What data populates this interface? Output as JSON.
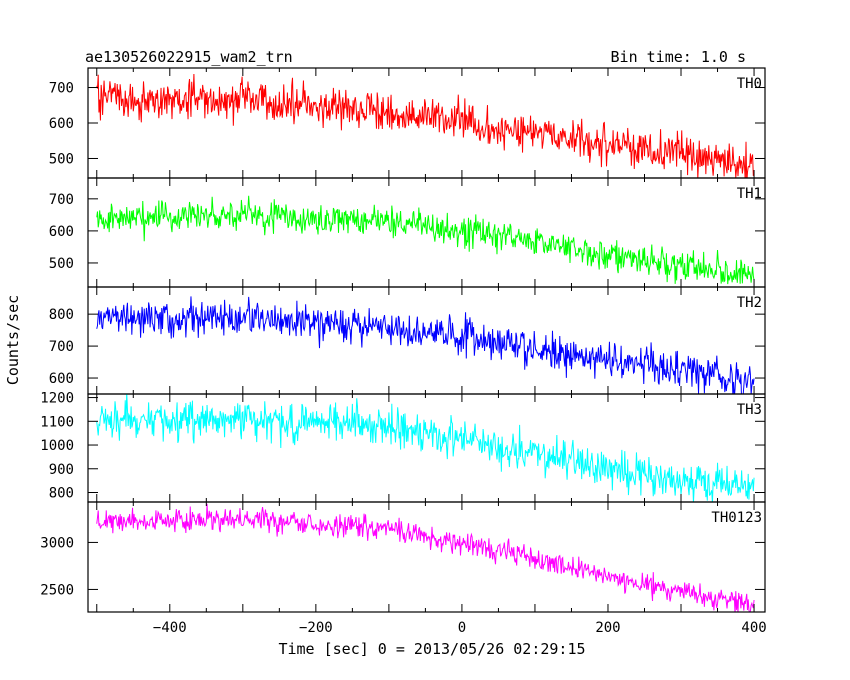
{
  "chart_data": {
    "type": "line",
    "title": "ae130526022915_wam2_trn",
    "bin_time_label": "Bin time: 1.0 s",
    "xlabel": "Time [sec] 0 = 2013/05/26 02:29:15",
    "ylabel": "Counts/sec",
    "xlim": [
      -512,
      415
    ],
    "x_ticks": [
      -400,
      -200,
      0,
      200,
      400
    ],
    "x_tick_labels": [
      "−400",
      "−200",
      "0",
      "200",
      "400"
    ],
    "grid": false,
    "panels": [
      {
        "name": "TH0",
        "color": "#ff0000",
        "ylim": [
          445,
          755
        ],
        "y_ticks": [
          500,
          600,
          700
        ],
        "y_tick_labels": [
          "500",
          "600",
          "700"
        ],
        "x_range": [
          -500,
          400
        ],
        "noise": 28,
        "trend": [
          [
            -500,
            670
          ],
          [
            -300,
            660
          ],
          [
            -100,
            635
          ],
          [
            0,
            605
          ],
          [
            100,
            570
          ],
          [
            200,
            540
          ],
          [
            300,
            510
          ],
          [
            400,
            480
          ]
        ]
      },
      {
        "name": "TH1",
        "color": "#00ff00",
        "ylim": [
          425,
          765
        ],
        "y_ticks": [
          500,
          600,
          700
        ],
        "y_tick_labels": [
          "500",
          "600",
          "700"
        ],
        "x_range": [
          -500,
          400
        ],
        "noise": 24,
        "trend": [
          [
            -500,
            640
          ],
          [
            -300,
            650
          ],
          [
            -100,
            630
          ],
          [
            0,
            600
          ],
          [
            100,
            565
          ],
          [
            200,
            530
          ],
          [
            300,
            490
          ],
          [
            400,
            460
          ]
        ]
      },
      {
        "name": "TH2",
        "color": "#0000ff",
        "ylim": [
          550,
          885
        ],
        "y_ticks": [
          600,
          700,
          800
        ],
        "y_tick_labels": [
          "600",
          "700",
          "800"
        ],
        "x_range": [
          -500,
          400
        ],
        "noise": 28,
        "trend": [
          [
            -500,
            790
          ],
          [
            -300,
            785
          ],
          [
            -100,
            760
          ],
          [
            0,
            730
          ],
          [
            100,
            690
          ],
          [
            200,
            655
          ],
          [
            300,
            620
          ],
          [
            400,
            590
          ]
        ]
      },
      {
        "name": "TH3",
        "color": "#00ffff",
        "ylim": [
          760,
          1215
        ],
        "y_ticks": [
          800,
          900,
          1000,
          1100,
          1200
        ],
        "y_tick_labels": [
          "800",
          "900",
          "1000",
          "1100",
          "1200"
        ],
        "x_range": [
          -500,
          400
        ],
        "noise": 40,
        "trend": [
          [
            -500,
            1110
          ],
          [
            -300,
            1110
          ],
          [
            -100,
            1080
          ],
          [
            0,
            1020
          ],
          [
            100,
            960
          ],
          [
            200,
            900
          ],
          [
            300,
            850
          ],
          [
            400,
            810
          ]
        ]
      },
      {
        "name": "TH0123",
        "color": "#ff00ff",
        "ylim": [
          2260,
          3430
        ],
        "y_ticks": [
          2500,
          3000
        ],
        "y_tick_labels": [
          "2500",
          "3000"
        ],
        "x_range": [
          -500,
          400
        ],
        "noise": 60,
        "trend": [
          [
            -500,
            3230
          ],
          [
            -300,
            3240
          ],
          [
            -100,
            3150
          ],
          [
            0,
            2990
          ],
          [
            100,
            2830
          ],
          [
            200,
            2640
          ],
          [
            300,
            2480
          ],
          [
            400,
            2330
          ]
        ]
      }
    ]
  }
}
